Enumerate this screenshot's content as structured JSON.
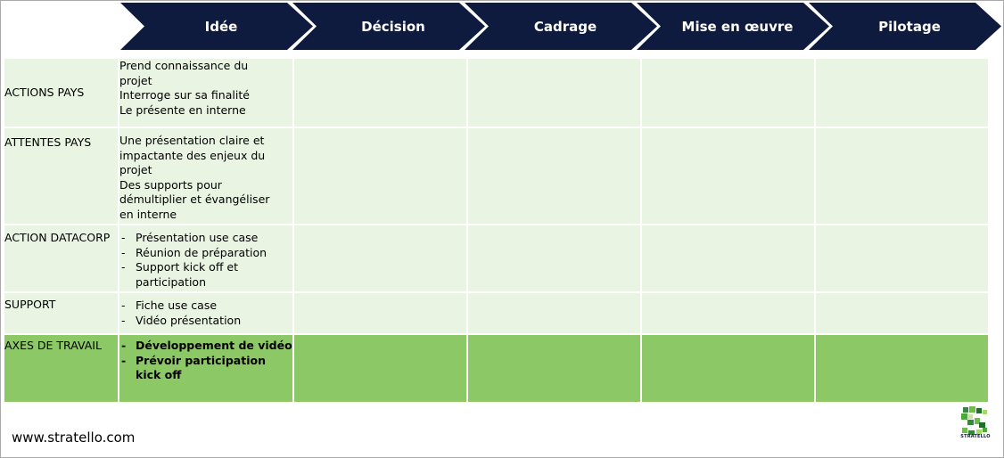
{
  "phases": [
    "Idée",
    "Décision",
    "Cadrage",
    "Mise en œuvre",
    "Pilotage"
  ],
  "rows": [
    {
      "label": "ACTIONS PAYS",
      "lines": [
        "Prend connaissance du",
        "projet",
        "Interroge sur sa finalité",
        "Le présente en interne"
      ]
    },
    {
      "label": "ATTENTES PAYS",
      "lines": [
        "Une présentation claire et",
        "impactante des enjeux du",
        "projet",
        "Des supports pour",
        "démultiplier et évangéliser",
        "en interne"
      ]
    },
    {
      "label": "ACTION DATACORP",
      "bullets": [
        "Présentation use case",
        "Réunion de préparation",
        "Support kick off et participation"
      ]
    },
    {
      "label": "SUPPORT",
      "bullets": [
        "Fiche use case",
        "Vidéo présentation"
      ]
    },
    {
      "label": "AXES DE TRAVAIL",
      "bullets": [
        "Développement de vidéo",
        "Prévoir participation kick off"
      ]
    }
  ],
  "footer": {
    "website": "www.stratello.com",
    "logo_text": "STRATELLO"
  },
  "colors": {
    "chevron": "#0f1b3e",
    "row_light": "#e9f4e3",
    "row_highlight": "#8cc866"
  }
}
